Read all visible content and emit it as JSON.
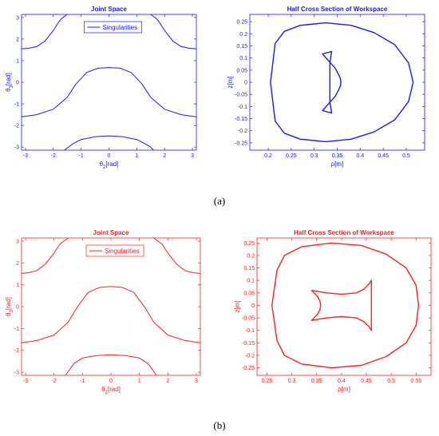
{
  "captions": {
    "a": "(a)",
    "b": "(b)"
  },
  "chart_data": [
    {
      "id": "a-joint",
      "type": "line",
      "title": "Joint Space",
      "xlabel": "θ2[rad]",
      "ylabel": "θ3[rad]",
      "xlim": [
        -3.14159,
        3.14159
      ],
      "ylim": [
        -3.14159,
        3.14159
      ],
      "xticks": [
        -3,
        -2,
        -1,
        0,
        1,
        2,
        3
      ],
      "yticks": [
        -3,
        -2,
        -1,
        0,
        1,
        2,
        3
      ],
      "color": "#1a1aff",
      "legend": {
        "entries": [
          "Singularities"
        ],
        "placement": "top-center"
      },
      "series": [
        {
          "x": [
            -3.14,
            -2.9,
            -2.6,
            -2.3,
            -2.0,
            -1.8,
            -1.7,
            -1.5
          ],
          "y": [
            1.55,
            1.57,
            1.65,
            1.9,
            2.4,
            2.8,
            2.95,
            3.14
          ]
        },
        {
          "x": [
            1.5,
            1.7,
            1.8,
            2.0,
            2.3,
            2.6,
            2.9,
            3.14
          ],
          "y": [
            3.14,
            2.95,
            2.8,
            2.4,
            1.9,
            1.65,
            1.57,
            1.55
          ]
        },
        {
          "x": [
            -3.14,
            -2.6,
            -2.0,
            -1.5,
            -1.2,
            -0.8,
            -0.4,
            0,
            0.4,
            0.8,
            1.2,
            1.5,
            2.0,
            2.6,
            3.14
          ],
          "y": [
            -1.6,
            -1.5,
            -1.25,
            -0.7,
            -0.1,
            0.45,
            0.65,
            0.68,
            0.65,
            0.45,
            -0.1,
            -0.7,
            -1.25,
            -1.5,
            -1.6
          ]
        },
        {
          "x": [
            -1.6,
            -1.3,
            -1.0,
            -0.5,
            0,
            0.5,
            1.0,
            1.3,
            1.5,
            1.6
          ],
          "y": [
            -3.14,
            -2.85,
            -2.65,
            -2.52,
            -2.48,
            -2.52,
            -2.65,
            -2.85,
            -3.0,
            -3.14
          ]
        }
      ]
    },
    {
      "id": "a-workspace",
      "type": "line",
      "title": "Half Cross Section of Workspace",
      "xlabel": "ρ[m]",
      "ylabel": "z[m]",
      "xlim": [
        0.16,
        0.54
      ],
      "ylim": [
        -0.28,
        0.28
      ],
      "xticks": [
        0.2,
        0.25,
        0.3,
        0.35,
        0.4,
        0.45,
        0.5
      ],
      "yticks": [
        -0.25,
        -0.2,
        -0.15,
        -0.1,
        -0.05,
        0,
        0.05,
        0.1,
        0.15,
        0.2,
        0.25
      ],
      "color": "#1a1aff",
      "series": [
        {
          "x": [
            0.325,
            0.38,
            0.43,
            0.475,
            0.505,
            0.515,
            0.505,
            0.475,
            0.43,
            0.38,
            0.325,
            0.27,
            0.235,
            0.215,
            0.21,
            0.205,
            0.21,
            0.215,
            0.235,
            0.27,
            0.325
          ],
          "y": [
            0.245,
            0.235,
            0.205,
            0.155,
            0.08,
            0.0,
            -0.08,
            -0.155,
            -0.205,
            -0.235,
            -0.245,
            -0.235,
            -0.21,
            -0.16,
            -0.08,
            0.0,
            0.08,
            0.16,
            0.21,
            0.235,
            0.245
          ]
        },
        {
          "x": [
            0.318,
            0.338,
            0.334,
            0.318
          ],
          "y": [
            0.117,
            0.127,
            0.082,
            0.117
          ]
        },
        {
          "x": [
            0.318,
            0.338,
            0.334,
            0.318
          ],
          "y": [
            -0.117,
            -0.127,
            -0.082,
            -0.117
          ]
        },
        {
          "x": [
            0.334,
            0.334
          ],
          "y": [
            0.082,
            -0.082
          ]
        },
        {
          "x": [
            0.334,
            0.345,
            0.352,
            0.357,
            0.358,
            0.357,
            0.352,
            0.345,
            0.334
          ],
          "y": [
            0.082,
            0.06,
            0.035,
            0.015,
            0.0,
            -0.015,
            -0.035,
            -0.06,
            -0.082
          ]
        }
      ]
    },
    {
      "id": "b-joint",
      "type": "line",
      "title": "Joint Space",
      "xlabel": "θ2[rad]",
      "ylabel": "θ3[rad]",
      "xlim": [
        -3.14159,
        3.14159
      ],
      "ylim": [
        -3.14159,
        3.14159
      ],
      "xticks": [
        -3,
        -2,
        -1,
        0,
        1,
        2,
        3
      ],
      "yticks": [
        -3,
        -2,
        -1,
        0,
        1,
        2,
        3
      ],
      "color": "#ff2020",
      "legend": {
        "entries": [
          "Singularities"
        ],
        "placement": "top-center"
      },
      "series": [
        {
          "x": [
            -3.14,
            -2.9,
            -2.6,
            -2.3,
            -2.0,
            -1.8,
            -1.65,
            -1.5
          ],
          "y": [
            1.52,
            1.55,
            1.65,
            1.95,
            2.45,
            2.85,
            3.0,
            3.14
          ]
        },
        {
          "x": [
            1.5,
            1.65,
            1.8,
            2.0,
            2.3,
            2.6,
            2.9,
            3.14
          ],
          "y": [
            3.14,
            3.0,
            2.85,
            2.45,
            1.95,
            1.65,
            1.55,
            1.52
          ]
        },
        {
          "x": [
            -3.14,
            -2.6,
            -2.0,
            -1.5,
            -1.2,
            -0.8,
            -0.4,
            0,
            0.4,
            0.8,
            1.2,
            1.5,
            2.0,
            2.6,
            3.14
          ],
          "y": [
            -1.65,
            -1.55,
            -1.3,
            -0.7,
            -0.05,
            0.65,
            0.88,
            0.92,
            0.88,
            0.65,
            -0.05,
            -0.7,
            -1.3,
            -1.55,
            -1.65
          ]
        },
        {
          "x": [
            -1.6,
            -1.3,
            -1.0,
            -0.5,
            0,
            0.5,
            1.0,
            1.3,
            1.5,
            1.6
          ],
          "y": [
            -3.14,
            -2.6,
            -2.35,
            -2.24,
            -2.2,
            -2.24,
            -2.35,
            -2.6,
            -2.95,
            -3.14
          ]
        }
      ]
    },
    {
      "id": "b-workspace",
      "type": "line",
      "title": "Half Cross Section of Workspace",
      "xlabel": "ρ[m]",
      "ylabel": "z[m]",
      "xlim": [
        0.23,
        0.58
      ],
      "ylim": [
        -0.28,
        0.27
      ],
      "xticks": [
        0.25,
        0.3,
        0.35,
        0.4,
        0.45,
        0.5,
        0.55
      ],
      "yticks": [
        -0.25,
        -0.2,
        -0.15,
        -0.1,
        -0.05,
        0,
        0.05,
        0.1,
        0.15,
        0.2,
        0.25
      ],
      "color": "#ff2020",
      "series": [
        {
          "x": [
            0.38,
            0.44,
            0.49,
            0.53,
            0.55,
            0.555,
            0.55,
            0.53,
            0.49,
            0.44,
            0.38,
            0.32,
            0.285,
            0.27,
            0.265,
            0.26,
            0.265,
            0.27,
            0.285,
            0.32,
            0.38
          ],
          "y": [
            0.25,
            0.24,
            0.205,
            0.15,
            0.08,
            0.0,
            -0.08,
            -0.15,
            -0.205,
            -0.24,
            -0.25,
            -0.235,
            -0.2,
            -0.14,
            -0.07,
            0.0,
            0.07,
            0.14,
            0.2,
            0.235,
            0.25
          ]
        },
        {
          "x": [
            0.34,
            0.37,
            0.4,
            0.43,
            0.445,
            0.455,
            0.46
          ],
          "y": [
            0.06,
            0.05,
            0.045,
            0.05,
            0.065,
            0.085,
            0.1
          ]
        },
        {
          "x": [
            0.46,
            0.46
          ],
          "y": [
            0.1,
            -0.1
          ]
        },
        {
          "x": [
            0.34,
            0.37,
            0.4,
            0.43,
            0.445,
            0.455,
            0.46
          ],
          "y": [
            -0.06,
            -0.05,
            -0.045,
            -0.05,
            -0.065,
            -0.085,
            -0.1
          ]
        },
        {
          "x": [
            0.34,
            0.352,
            0.357,
            0.358,
            0.357,
            0.352,
            0.34
          ],
          "y": [
            0.06,
            0.035,
            0.015,
            0.0,
            -0.015,
            -0.035,
            -0.06
          ]
        }
      ]
    }
  ]
}
